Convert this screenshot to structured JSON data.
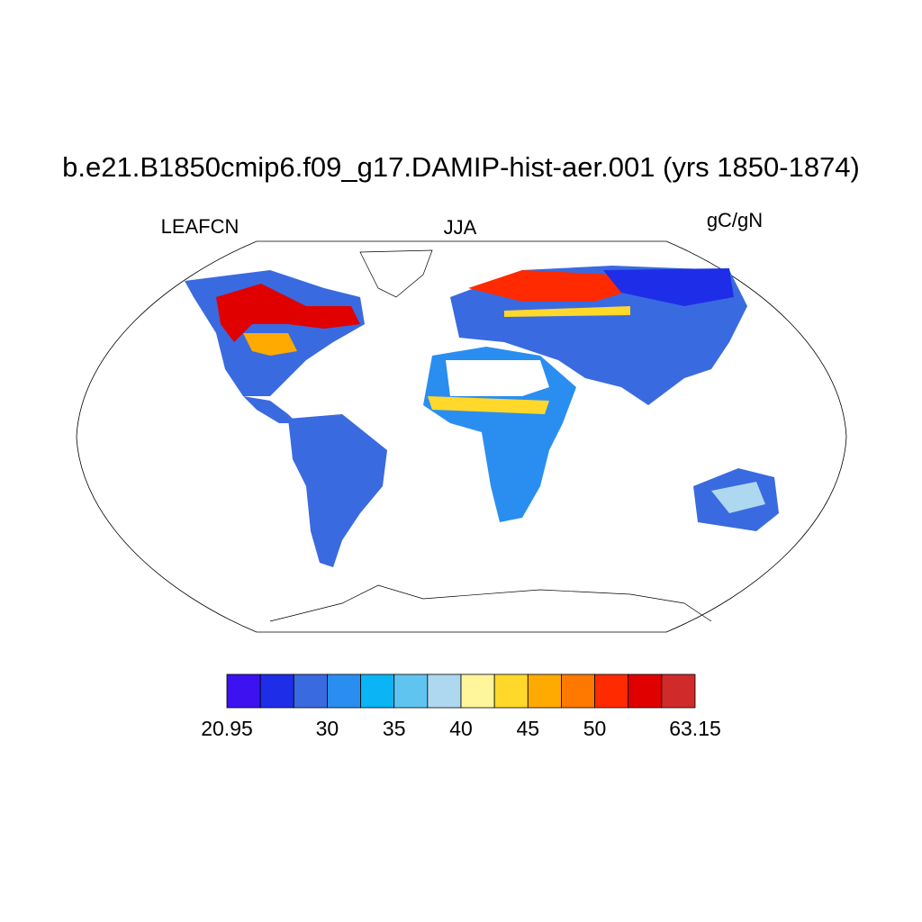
{
  "map": {
    "title": "b.e21.B1850cmip6.f09_g17.DAMIP-hist-aer.001 (yrs 1850-1874)",
    "left_label": "LEAFCN",
    "center_label": "JJA",
    "right_label": "gC/gN",
    "colorbar": {
      "colors": [
        "#3d12f0",
        "#1e2ee8",
        "#3a6ae0",
        "#2a8ef0",
        "#0ab4f5",
        "#60c4f0",
        "#aed8f0",
        "#fff59a",
        "#ffd82a",
        "#ffaa00",
        "#ff7800",
        "#ff2a00",
        "#e00000",
        "#d02a2a"
      ],
      "labels": [
        "20.95",
        "30",
        "35",
        "40",
        "45",
        "50",
        "63.15"
      ]
    }
  }
}
